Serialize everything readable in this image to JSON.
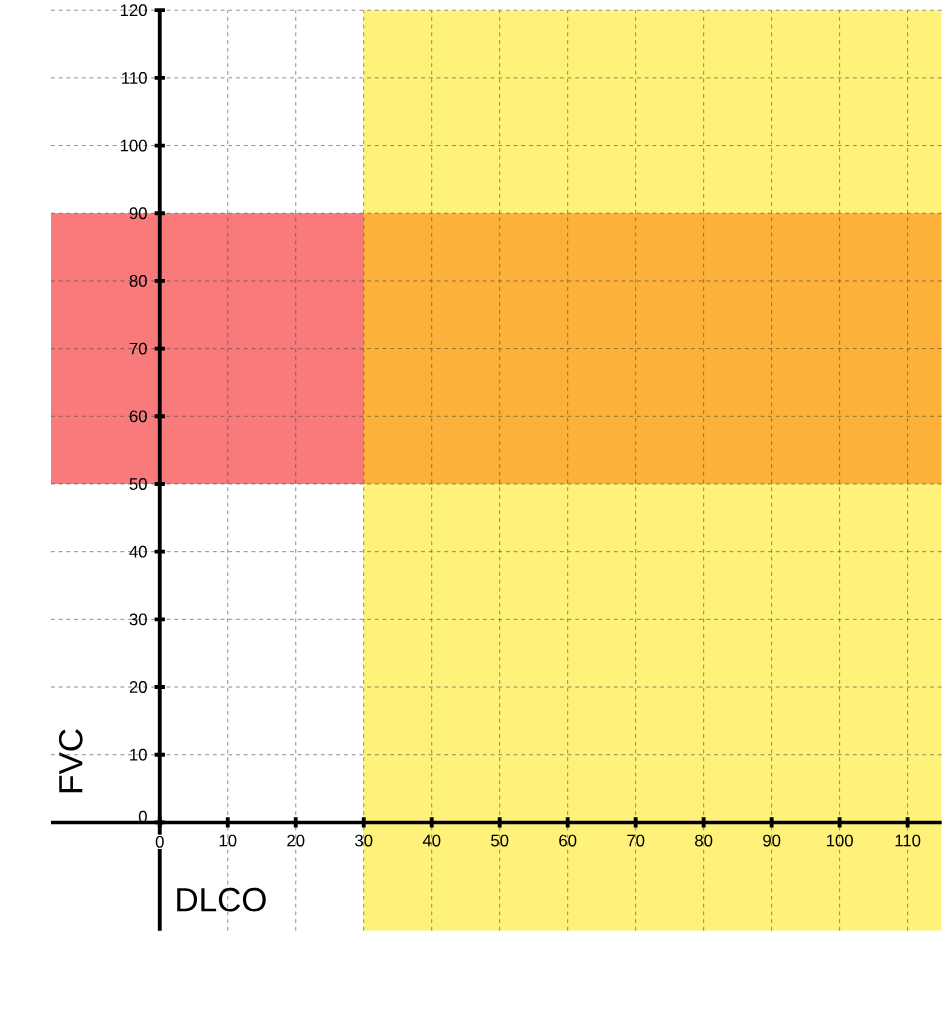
{
  "chart_data": {
    "type": "scatter",
    "xlabel": "DLCO",
    "ylabel": "FVC",
    "xlim": [
      -16,
      115
    ],
    "ylim": [
      -16,
      120
    ],
    "xticks": [
      0,
      10,
      20,
      30,
      40,
      50,
      60,
      70,
      80,
      90,
      100,
      110
    ],
    "yticks": [
      0,
      10,
      20,
      30,
      40,
      50,
      60,
      70,
      80,
      90,
      100,
      110,
      120
    ],
    "grid": true,
    "bands": [
      {
        "axis": "y",
        "from": 50,
        "to": 90,
        "color": "#f20000"
      },
      {
        "axis": "x",
        "from": 30,
        "to": 115,
        "color": "#ffe600"
      }
    ]
  }
}
